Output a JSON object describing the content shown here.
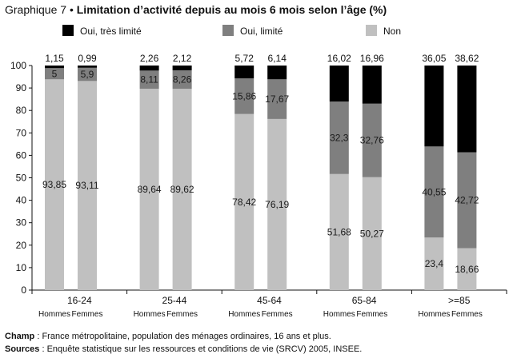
{
  "figure": {
    "label": "Graphique 7",
    "bullet": "•",
    "title": "Limitation d’activité depuis au mois 6 mois selon l’âge (%)"
  },
  "notes": {
    "champ_label": "Champ",
    "champ_text": " : France métropolitaine, population des ménages ordinaires, 16 ans et plus.",
    "sources_label": "Sources",
    "sources_text": " : Enquête statistique sur les ressources et conditions de vie (SRCV) 2005, INSEE."
  },
  "chart_data": {
    "type": "bar",
    "stacked": true,
    "ylim": [
      0,
      100
    ],
    "yticks": [
      0,
      10,
      20,
      30,
      40,
      50,
      60,
      70,
      80,
      90,
      100
    ],
    "grid": false,
    "legend_position": "top",
    "groups": [
      "16-24",
      "25-44",
      "45-64",
      "65-84",
      ">=85"
    ],
    "sub_categories": [
      "Hommes",
      "Femmes"
    ],
    "series": [
      {
        "name": "Non",
        "color": "#c0c0c0",
        "values": [
          93.85,
          93.11,
          89.64,
          89.62,
          78.42,
          76.19,
          51.68,
          50.27,
          23.4,
          18.66
        ],
        "labels": [
          "93,85",
          "93,11",
          "89,64",
          "89,62",
          "78,42",
          "76,19",
          "51,68",
          "50,27",
          "23,4",
          "18,66"
        ]
      },
      {
        "name": "Oui, limité",
        "color": "#7f7f7f",
        "values": [
          5,
          5.9,
          8.11,
          8.26,
          15.86,
          17.67,
          32.3,
          32.76,
          40.55,
          42.72
        ],
        "labels": [
          "5",
          "5,9",
          "8,11",
          "8,26",
          "15,86",
          "17,67",
          "32,3",
          "32,76",
          "40,55",
          "42,72"
        ]
      },
      {
        "name": "Oui, très limité",
        "color": "#000000",
        "values": [
          1.15,
          0.99,
          2.26,
          2.12,
          5.72,
          6.14,
          16.02,
          16.96,
          36.05,
          38.62
        ],
        "labels": [
          "1,15",
          "0,99",
          "2,26",
          "2,12",
          "5,72",
          "6,14",
          "16,02",
          "16,96",
          "36,05",
          "38,62"
        ]
      }
    ],
    "legend_order": [
      "Oui, très limité",
      "Oui, limité",
      "Non"
    ]
  }
}
